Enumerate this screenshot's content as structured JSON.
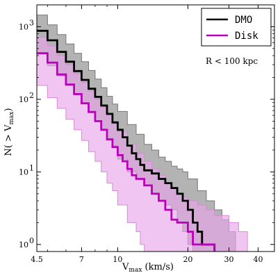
{
  "chart_data": {
    "type": "line",
    "xscale": "log",
    "yscale": "log",
    "xlim": [
      4.5,
      47
    ],
    "ylim": [
      0.8,
      2000
    ],
    "xticks": [
      4.5,
      7,
      10,
      20,
      30,
      40
    ],
    "xtick_labels": [
      "4.5",
      "7",
      "10",
      "20",
      "30",
      "40"
    ],
    "yticks": [
      1,
      10,
      100,
      1000
    ],
    "ytick_labels": [
      "10",
      "10",
      "10",
      "10"
    ],
    "ytick_exponents": [
      "0",
      "1",
      "2",
      "3"
    ],
    "xlabel": "V",
    "xlabel_sub": "max",
    "xlabel_unit": " (km/s)",
    "ylabel_pre": "N( > V",
    "ylabel_sub": "max",
    "ylabel_post": ")",
    "annotation": "R < 100 kpc",
    "legend_position": "top-right",
    "series": [
      {
        "name": "DMO",
        "color": "#000000",
        "band_color": "#999999",
        "line": [
          [
            4.5,
            880
          ],
          [
            5,
            650
          ],
          [
            5.5,
            450
          ],
          [
            6,
            330
          ],
          [
            6.5,
            245
          ],
          [
            7,
            185
          ],
          [
            7.5,
            140
          ],
          [
            8,
            108
          ],
          [
            8.5,
            82
          ],
          [
            9,
            63
          ],
          [
            9.5,
            48
          ],
          [
            10,
            38
          ],
          [
            10.5,
            30
          ],
          [
            11,
            23
          ],
          [
            11.5,
            18
          ],
          [
            12,
            15
          ],
          [
            12.5,
            12.5
          ],
          [
            13,
            10.5
          ],
          [
            14,
            9.5
          ],
          [
            15,
            8
          ],
          [
            16,
            7
          ],
          [
            17,
            6
          ],
          [
            18,
            5
          ],
          [
            19,
            4
          ],
          [
            20,
            3
          ],
          [
            21,
            2
          ],
          [
            22,
            1.5
          ],
          [
            23,
            1
          ],
          [
            26,
            1
          ]
        ],
        "upper": [
          [
            4.5,
            1450
          ],
          [
            5,
            1060
          ],
          [
            5.5,
            780
          ],
          [
            6,
            580
          ],
          [
            6.5,
            430
          ],
          [
            7,
            330
          ],
          [
            7.5,
            250
          ],
          [
            8,
            190
          ],
          [
            8.5,
            145
          ],
          [
            9,
            110
          ],
          [
            9.5,
            86
          ],
          [
            10,
            68
          ],
          [
            11,
            45
          ],
          [
            12,
            33
          ],
          [
            13,
            24
          ],
          [
            14,
            20
          ],
          [
            15,
            16
          ],
          [
            16,
            14
          ],
          [
            17,
            12
          ],
          [
            18,
            11
          ],
          [
            19,
            10
          ],
          [
            20,
            8
          ],
          [
            22,
            5.5
          ],
          [
            24,
            4
          ],
          [
            26,
            3
          ],
          [
            28,
            2.2
          ],
          [
            30,
            1.5
          ],
          [
            32,
            1
          ]
        ],
        "lower": [
          [
            4.5,
            560
          ],
          [
            5,
            420
          ],
          [
            5.5,
            290
          ],
          [
            6,
            210
          ],
          [
            6.5,
            155
          ],
          [
            7,
            115
          ],
          [
            7.5,
            87
          ],
          [
            8,
            65
          ],
          [
            8.5,
            50
          ],
          [
            9,
            38
          ],
          [
            9.5,
            29
          ],
          [
            10,
            23
          ],
          [
            11,
            15
          ],
          [
            12,
            10
          ],
          [
            13,
            8
          ],
          [
            14,
            6.5
          ],
          [
            15,
            5
          ],
          [
            16,
            4
          ],
          [
            17,
            3.5
          ],
          [
            18,
            3
          ],
          [
            19,
            2
          ],
          [
            20,
            1.5
          ],
          [
            21,
            1
          ]
        ]
      },
      {
        "name": "Disk",
        "color": "#bb00bb",
        "band_color": "#e9a6e9",
        "line": [
          [
            4.5,
            430
          ],
          [
            5,
            320
          ],
          [
            5.5,
            220
          ],
          [
            6,
            160
          ],
          [
            6.5,
            118
          ],
          [
            7,
            88
          ],
          [
            7.5,
            67
          ],
          [
            8,
            50
          ],
          [
            8.5,
            38
          ],
          [
            9,
            28
          ],
          [
            9.5,
            22
          ],
          [
            10,
            17
          ],
          [
            10.5,
            14
          ],
          [
            11,
            11
          ],
          [
            11.5,
            9
          ],
          [
            12,
            8
          ],
          [
            13,
            6.5
          ],
          [
            14,
            5
          ],
          [
            15,
            4
          ],
          [
            16,
            3
          ],
          [
            17,
            2.2
          ],
          [
            18,
            2
          ],
          [
            19,
            2
          ],
          [
            20,
            1.5
          ],
          [
            21,
            1
          ],
          [
            26,
            1
          ]
        ],
        "upper": [
          [
            4.5,
            720
          ],
          [
            5,
            540
          ],
          [
            5.5,
            400
          ],
          [
            6,
            300
          ],
          [
            6.5,
            225
          ],
          [
            7,
            170
          ],
          [
            7.5,
            130
          ],
          [
            8,
            100
          ],
          [
            8.5,
            78
          ],
          [
            9,
            60
          ],
          [
            9.5,
            46
          ],
          [
            10,
            36
          ],
          [
            11,
            24
          ],
          [
            12,
            18
          ],
          [
            13,
            14
          ],
          [
            14,
            11
          ],
          [
            15,
            9
          ],
          [
            16,
            7
          ],
          [
            17,
            6
          ],
          [
            18,
            5
          ],
          [
            19,
            4.5
          ],
          [
            20,
            4
          ],
          [
            22,
            3.5
          ],
          [
            24,
            3
          ],
          [
            26,
            2.5
          ],
          [
            28,
            2.5
          ],
          [
            30,
            2
          ],
          [
            33,
            1.5
          ],
          [
            36,
            1
          ]
        ],
        "lower": [
          [
            4.5,
            220
          ],
          [
            5,
            155
          ],
          [
            5.5,
            105
          ],
          [
            6,
            75
          ],
          [
            6.5,
            53
          ],
          [
            7,
            38
          ],
          [
            7.5,
            27
          ],
          [
            8,
            19
          ],
          [
            8.5,
            14
          ],
          [
            9,
            10
          ],
          [
            9.5,
            7
          ],
          [
            10,
            5.5
          ],
          [
            11,
            3.5
          ],
          [
            12,
            2
          ],
          [
            12.5,
            1.5
          ],
          [
            13,
            1
          ]
        ]
      }
    ]
  }
}
